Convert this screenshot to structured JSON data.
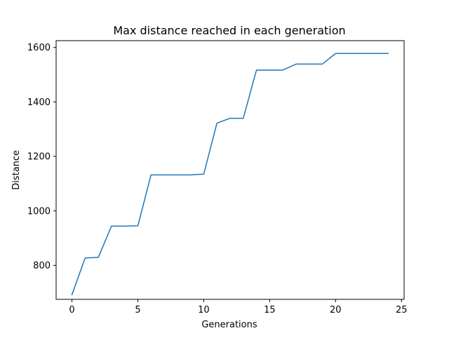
{
  "chart_data": {
    "type": "line",
    "title": "Max distance reached in each generation",
    "xlabel": "Generations",
    "ylabel": "Distance",
    "xlim": [
      -1.2,
      25.2
    ],
    "ylim": [
      675,
      1625
    ],
    "xticks": [
      0,
      5,
      10,
      15,
      20,
      25
    ],
    "yticks": [
      800,
      1000,
      1200,
      1400,
      1600
    ],
    "xtick_labels": [
      "0",
      "5",
      "10",
      "15",
      "20",
      "25"
    ],
    "ytick_labels": [
      "800",
      "1000",
      "1200",
      "1400",
      "1600"
    ],
    "grid": false,
    "legend": "none",
    "series": [
      {
        "color": "#1f77b4",
        "x": [
          0,
          1,
          2,
          3,
          4,
          5,
          6,
          7,
          8,
          9,
          10,
          11,
          12,
          13,
          14,
          15,
          16,
          17,
          18,
          19,
          20,
          21,
          22,
          23,
          24
        ],
        "y": [
          692,
          827,
          829,
          944,
          944,
          945,
          1132,
          1132,
          1132,
          1132,
          1135,
          1322,
          1340,
          1340,
          1517,
          1517,
          1517,
          1539,
          1539,
          1539,
          1578,
          1578,
          1578,
          1578,
          1578
        ]
      }
    ]
  }
}
